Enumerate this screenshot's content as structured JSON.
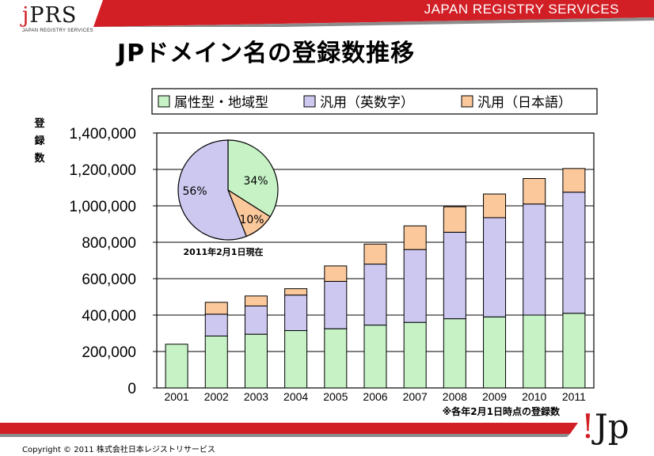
{
  "header": {
    "logo": "jPRS",
    "logo_subtitle": "JAPAN REGISTRY SERVICES",
    "company_banner": "JAPAN REGISTRY SERVICES",
    "title": "JPドメイン名の登録数推移"
  },
  "footer": {
    "copyright": "Copyright © 2011 株式会社日本レジストリサービス",
    "logo": "!Jp"
  },
  "colors": {
    "brand_red": "#d21f26",
    "green": "#c6f2c6",
    "purple": "#cdc8f0",
    "orange": "#fbc89c"
  },
  "chart_data": [
    {
      "type": "bar",
      "stacked": true,
      "title": "",
      "xlabel": "",
      "ylabel": "登録数",
      "ylim": [
        0,
        1400000
      ],
      "yticks": [
        "0",
        "200,000",
        "400,000",
        "600,000",
        "800,000",
        "1,000,000",
        "1,200,000",
        "1,400,000"
      ],
      "grid": true,
      "legend_position": "top",
      "categories": [
        "2001",
        "2002",
        "2003",
        "2004",
        "2005",
        "2006",
        "2007",
        "2008",
        "2009",
        "2010",
        "2011"
      ],
      "series": [
        {
          "name": "属性型・地域型",
          "color": "#c6f2c6",
          "values": [
            240000,
            285000,
            295000,
            315000,
            325000,
            345000,
            360000,
            380000,
            390000,
            400000,
            410000
          ]
        },
        {
          "name": "汎用（英数字）",
          "color": "#cdc8f0",
          "values": [
            0,
            120000,
            155000,
            195000,
            260000,
            335000,
            400000,
            475000,
            545000,
            610000,
            665000
          ]
        },
        {
          "name": "汎用（日本語）",
          "color": "#fbc89c",
          "values": [
            0,
            65000,
            55000,
            35000,
            85000,
            110000,
            130000,
            140000,
            130000,
            140000,
            130000
          ]
        }
      ],
      "annotation": "※各年2月1日時点の登録数"
    },
    {
      "type": "pie",
      "title": "",
      "caption": "2011年2月1日現在",
      "slices": [
        {
          "label": "34%",
          "value": 34,
          "color": "#c6f2c6"
        },
        {
          "label": "10%",
          "value": 10,
          "color": "#fbc89c"
        },
        {
          "label": "56%",
          "value": 56,
          "color": "#cdc8f0"
        }
      ]
    }
  ]
}
